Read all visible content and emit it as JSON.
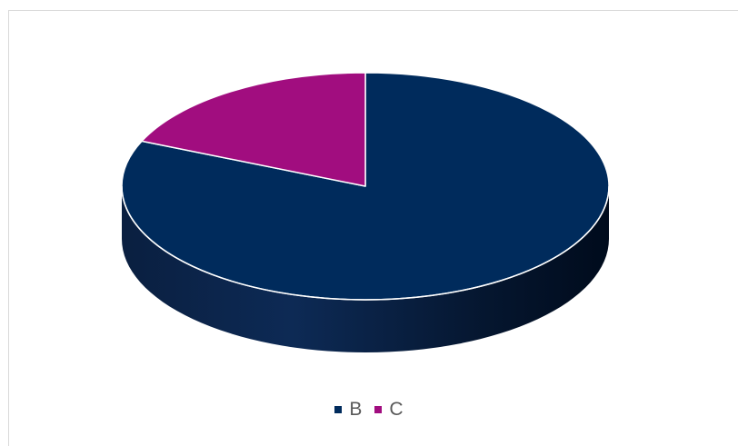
{
  "chart_data": {
    "type": "pie",
    "style": "3d",
    "categories": [
      "B",
      "C"
    ],
    "values": [
      81.5,
      18.5
    ],
    "colors": [
      "#002b5c",
      "#a10d7f"
    ],
    "title": "",
    "legend": {
      "position": "bottom",
      "entries": [
        "B",
        "C"
      ]
    }
  }
}
